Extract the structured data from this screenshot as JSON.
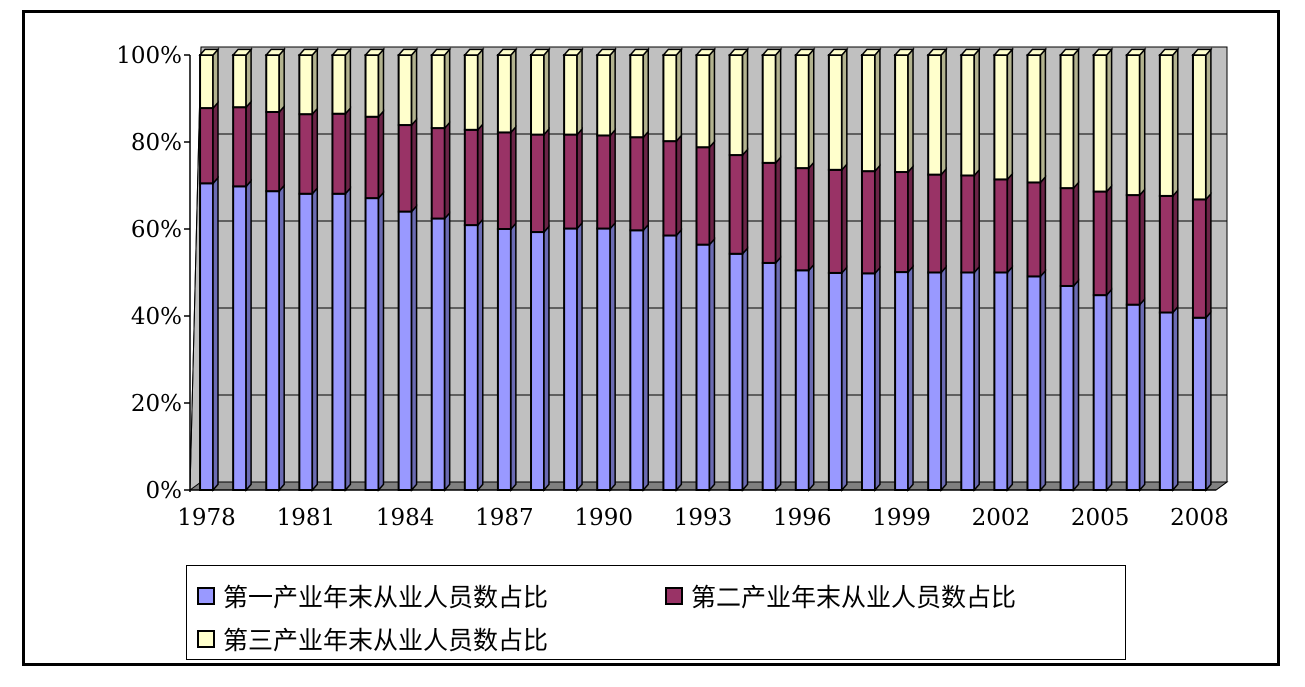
{
  "chart_data": {
    "type": "bar",
    "stacked": true,
    "percent_stacked": true,
    "three_d": true,
    "title": "",
    "xlabel": "",
    "ylabel": "",
    "ylim": [
      0,
      100
    ],
    "y_ticks": [
      "0%",
      "20%",
      "40%",
      "60%",
      "80%",
      "100%"
    ],
    "x_tick_labels": [
      "1978",
      "1981",
      "1984",
      "1987",
      "1990",
      "1993",
      "1996",
      "1999",
      "2002",
      "2005",
      "2008"
    ],
    "categories": [
      "1978",
      "1979",
      "1980",
      "1981",
      "1982",
      "1983",
      "1984",
      "1985",
      "1986",
      "1987",
      "1988",
      "1989",
      "1990",
      "1991",
      "1992",
      "1993",
      "1994",
      "1995",
      "1996",
      "1997",
      "1998",
      "1999",
      "2000",
      "2001",
      "2002",
      "2003",
      "2004",
      "2005",
      "2006",
      "2007",
      "2008"
    ],
    "series": [
      {
        "name": "第一产业年末从业人员数占比",
        "color": "#9999ff",
        "values": [
          70.5,
          69.8,
          68.7,
          68.1,
          68.1,
          67.1,
          64.0,
          62.4,
          60.9,
          60.0,
          59.3,
          60.1,
          60.1,
          59.7,
          58.5,
          56.4,
          54.3,
          52.2,
          50.5,
          49.9,
          49.8,
          50.1,
          50.0,
          50.0,
          50.0,
          49.1,
          46.9,
          44.8,
          42.6,
          40.8,
          39.6
        ]
      },
      {
        "name": "第二产业年末从业人员数占比",
        "color": "#993366",
        "values": [
          17.3,
          18.2,
          18.2,
          18.3,
          18.4,
          18.7,
          19.9,
          20.8,
          21.9,
          22.2,
          22.4,
          21.6,
          21.4,
          21.4,
          21.7,
          22.4,
          22.7,
          23.0,
          23.5,
          23.7,
          23.5,
          23.0,
          22.5,
          22.3,
          21.4,
          21.6,
          22.5,
          23.8,
          25.2,
          26.8,
          27.2
        ]
      },
      {
        "name": "第三产业年末从业人员数占比",
        "color": "#ffffcc",
        "values": [
          12.2,
          12.0,
          13.1,
          13.6,
          13.5,
          14.2,
          16.1,
          16.8,
          17.2,
          17.8,
          18.3,
          18.3,
          18.5,
          18.9,
          19.8,
          21.2,
          23.0,
          24.8,
          26.0,
          26.4,
          26.7,
          26.9,
          27.5,
          27.7,
          28.6,
          29.3,
          30.6,
          31.4,
          32.2,
          32.4,
          33.2
        ]
      }
    ],
    "legend": {
      "position": "bottom"
    },
    "grid": true,
    "colors": {
      "plot_background": "#c0c0c0",
      "floor": "#808080",
      "gridline": "#000000"
    }
  }
}
